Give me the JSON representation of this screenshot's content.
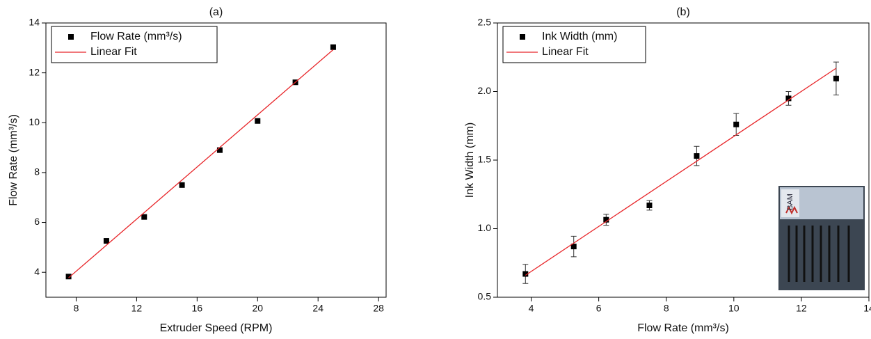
{
  "chart_data": [
    {
      "type": "scatter",
      "title": "(a)",
      "x_label": "Extruder Speed (RPM)",
      "y_label": "Flow Rate (mm³/s)",
      "xlim": [
        6,
        28.5
      ],
      "xticks": [
        8,
        12,
        16,
        20,
        24,
        28
      ],
      "ylim": [
        3,
        14
      ],
      "yticks": [
        4,
        6,
        8,
        10,
        12,
        14
      ],
      "legend": "upper left",
      "series": [
        {
          "name": "Flow Rate (mm³/s)",
          "color": "#000000",
          "marker": "square",
          "x": [
            7.5,
            10,
            12.5,
            15,
            17.5,
            20,
            22.5,
            25
          ],
          "values": [
            3.83,
            5.26,
            6.22,
            7.5,
            8.9,
            10.07,
            11.62,
            13.03
          ]
        },
        {
          "name": "Linear Fit",
          "color": "#e8262a",
          "marker": "line",
          "x": [
            7.5,
            25
          ],
          "values": [
            3.78,
            12.93
          ]
        }
      ]
    },
    {
      "type": "scatter",
      "title": "(b)",
      "x_label": "Flow Rate (mm³/s)",
      "y_label": "Ink Width (mm)",
      "xlim": [
        3,
        14
      ],
      "xticks": [
        4,
        6,
        8,
        10,
        12,
        14
      ],
      "ylim": [
        0.5,
        2.5
      ],
      "yticks": [
        0.5,
        {
          "value": 1,
          "label": "1.0"
        },
        1.5,
        {
          "value": 2,
          "label": "2.0"
        },
        2.5
      ],
      "legend": "upper left",
      "inset_label": "BAM",
      "series": [
        {
          "name": "Ink Width (mm)",
          "color": "#000000",
          "marker": "square",
          "x": [
            3.83,
            5.26,
            6.22,
            7.5,
            8.9,
            10.07,
            11.62,
            13.03
          ],
          "values": [
            0.67,
            0.87,
            1.065,
            1.17,
            1.53,
            1.76,
            1.95,
            2.095
          ],
          "errors": [
            0.07,
            0.075,
            0.04,
            0.035,
            0.07,
            0.08,
            0.05,
            0.12
          ]
        },
        {
          "name": "Linear Fit",
          "color": "#e8262a",
          "marker": "line",
          "x": [
            3.83,
            13.03
          ],
          "values": [
            0.66,
            2.17
          ]
        }
      ]
    }
  ]
}
